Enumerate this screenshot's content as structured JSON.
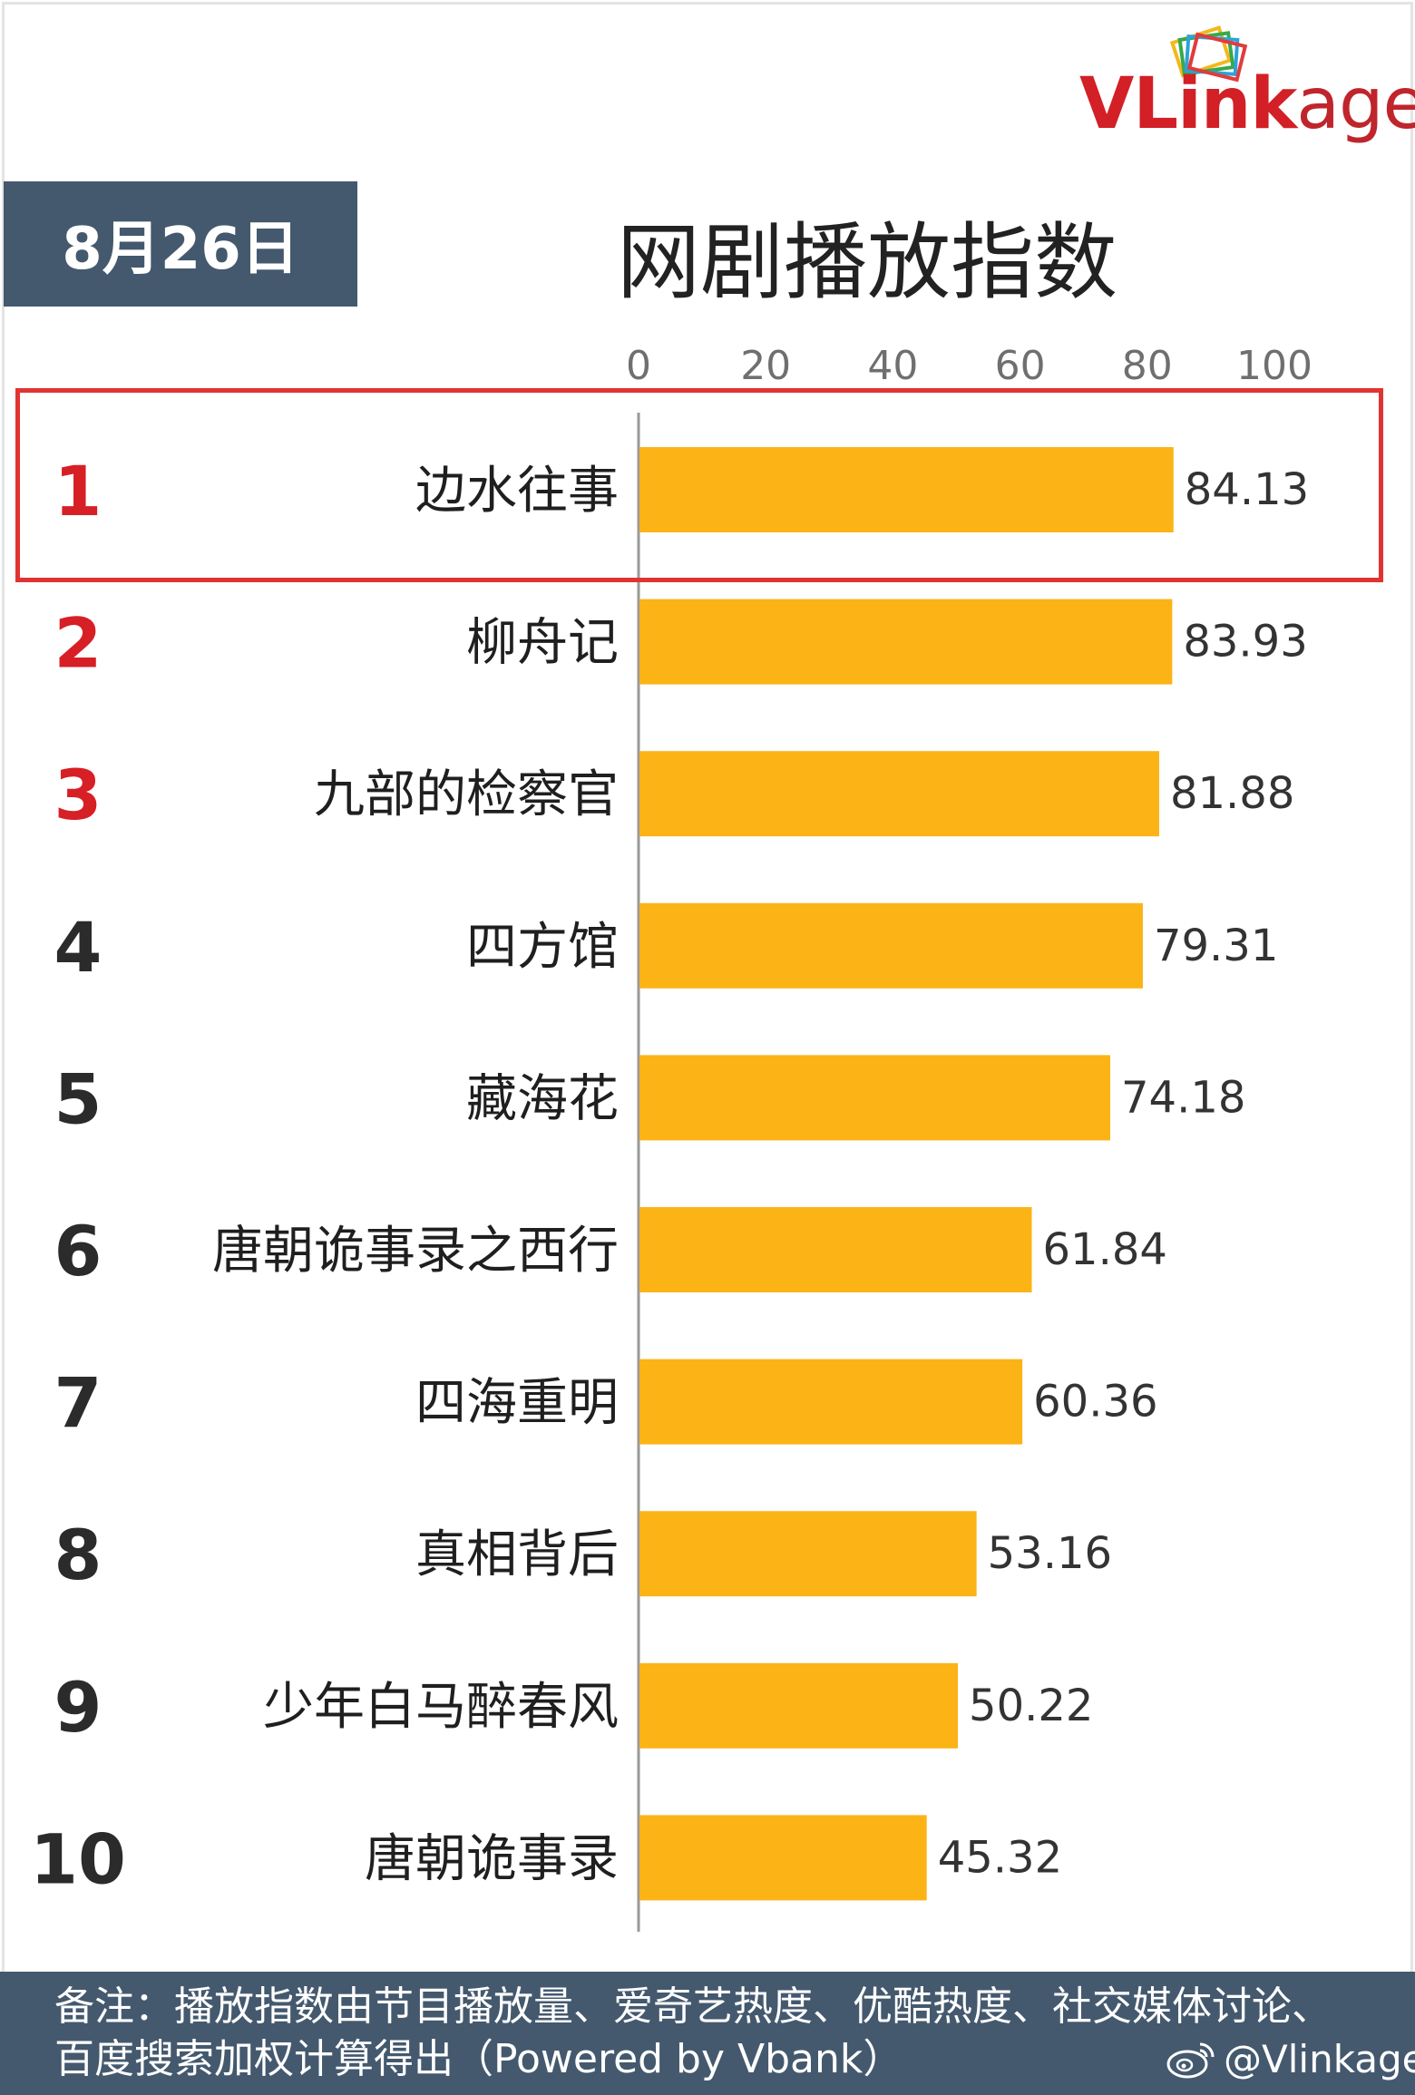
{
  "logo": {
    "text_v": "VL",
    "text_ink": "ink",
    "text_age": "age",
    "icon": "stacked-frames-icon"
  },
  "date": "8月26日",
  "title": "网剧播放指数",
  "chart_data": {
    "type": "bar",
    "orientation": "horizontal",
    "title": "网剧播放指数",
    "xlim": [
      0,
      100
    ],
    "xticks": [
      0,
      20,
      40,
      60,
      80,
      100
    ],
    "grid": false,
    "ranks": [
      "1",
      "2",
      "3",
      "4",
      "5",
      "6",
      "7",
      "8",
      "9",
      "10"
    ],
    "categories": [
      "边水往事",
      "柳舟记",
      "九部的检察官",
      "四方馆",
      "藏海花",
      "唐朝诡事录之西行",
      "四海重明",
      "真相背后",
      "少年白马醉春风",
      "唐朝诡事录"
    ],
    "values": [
      84.13,
      83.93,
      81.88,
      79.31,
      74.18,
      61.84,
      60.36,
      53.16,
      50.22,
      45.32
    ],
    "value_labels": [
      "84.13",
      "83.93",
      "81.88",
      "79.31",
      "74.18",
      "61.84",
      "60.36",
      "53.16",
      "50.22",
      "45.32"
    ],
    "highlighted_rank": "1"
  },
  "colors": {
    "bar": "#fbb316",
    "top_rank": "#d71f26",
    "rank": "#2b2b2b",
    "badge": "#44596e",
    "highlight": "#e03432",
    "axis": "#9a9a9a",
    "tick_label": "#6f6f6f"
  },
  "footnote": {
    "text": "备注：播放指数由节目播放量、爱奇艺热度、优酷热度、社交媒体讨论、百度搜索加权计算得出（Powered by Vbank）",
    "credit": "@Vlinkage",
    "credit_icon": "weibo-icon"
  }
}
